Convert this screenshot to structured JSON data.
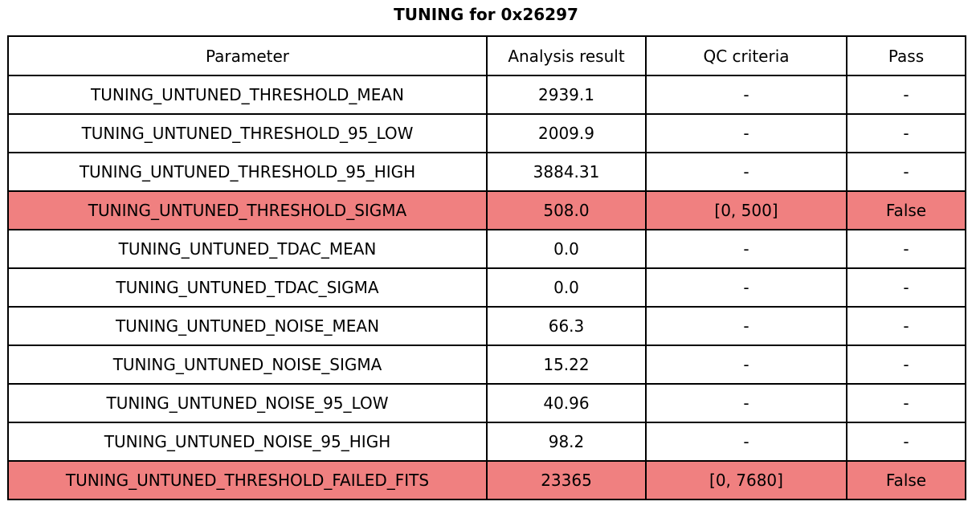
{
  "title": "TUNING for 0x26297",
  "colors": {
    "highlight": "#f08080",
    "border": "#000000",
    "background": "#ffffff"
  },
  "chart_data": {
    "type": "table",
    "title": "TUNING for 0x26297",
    "columns": [
      "Parameter",
      "Analysis result",
      "QC criteria",
      "Pass"
    ],
    "rows": [
      {
        "parameter": "TUNING_UNTUNED_THRESHOLD_MEAN",
        "result": "2939.1",
        "qc": "-",
        "pass": "-",
        "highlight": false
      },
      {
        "parameter": "TUNING_UNTUNED_THRESHOLD_95_LOW",
        "result": "2009.9",
        "qc": "-",
        "pass": "-",
        "highlight": false
      },
      {
        "parameter": "TUNING_UNTUNED_THRESHOLD_95_HIGH",
        "result": "3884.31",
        "qc": "-",
        "pass": "-",
        "highlight": false
      },
      {
        "parameter": "TUNING_UNTUNED_THRESHOLD_SIGMA",
        "result": "508.0",
        "qc": "[0, 500]",
        "pass": "False",
        "highlight": true
      },
      {
        "parameter": "TUNING_UNTUNED_TDAC_MEAN",
        "result": "0.0",
        "qc": "-",
        "pass": "-",
        "highlight": false
      },
      {
        "parameter": "TUNING_UNTUNED_TDAC_SIGMA",
        "result": "0.0",
        "qc": "-",
        "pass": "-",
        "highlight": false
      },
      {
        "parameter": "TUNING_UNTUNED_NOISE_MEAN",
        "result": "66.3",
        "qc": "-",
        "pass": "-",
        "highlight": false
      },
      {
        "parameter": "TUNING_UNTUNED_NOISE_SIGMA",
        "result": "15.22",
        "qc": "-",
        "pass": "-",
        "highlight": false
      },
      {
        "parameter": "TUNING_UNTUNED_NOISE_95_LOW",
        "result": "40.96",
        "qc": "-",
        "pass": "-",
        "highlight": false
      },
      {
        "parameter": "TUNING_UNTUNED_NOISE_95_HIGH",
        "result": "98.2",
        "qc": "-",
        "pass": "-",
        "highlight": false
      },
      {
        "parameter": "TUNING_UNTUNED_THRESHOLD_FAILED_FITS",
        "result": "23365",
        "qc": "[0, 7680]",
        "pass": "False",
        "highlight": true
      }
    ]
  }
}
